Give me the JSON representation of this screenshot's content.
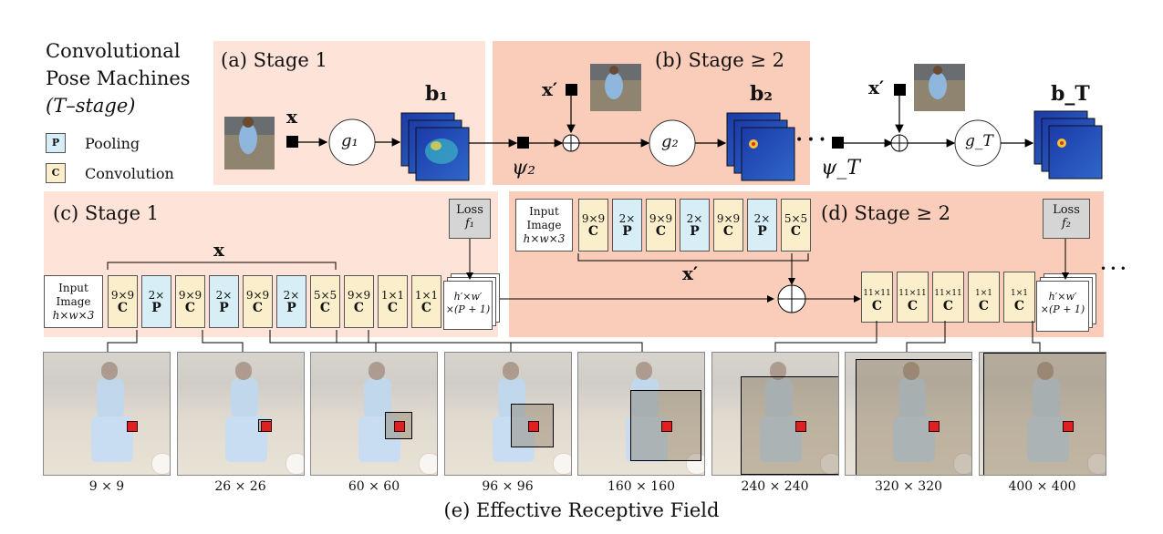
{
  "legend": {
    "title_lines": [
      "Convolutional",
      "Pose Machines",
      "(T–stage)"
    ],
    "pool": {
      "glyph": "P",
      "label": "Pooling",
      "color": "#d7eef7"
    },
    "conv": {
      "glyph": "C",
      "label": "Convolution",
      "color": "#fbeecb"
    }
  },
  "colors": {
    "stage1_panel": "#fde3d8",
    "stage2_panel": "#f9cdb9"
  },
  "panel_a": {
    "title": "(a) Stage 1",
    "x": "x",
    "g": "g₁",
    "b": "b₁"
  },
  "panel_b": {
    "title": "(b) Stage ≥ 2",
    "xprime": "x′",
    "g": "g₂",
    "b": "b₂",
    "psi": "ψ₂"
  },
  "panel_t": {
    "xprime": "x′",
    "g": "g_T",
    "b": "b_T",
    "psi": "ψ_T",
    "dots": "• • •"
  },
  "panel_c": {
    "title": "(c) Stage 1",
    "x": "x",
    "input": [
      "Input",
      "Image",
      "h×w×3"
    ],
    "loss": [
      "Loss",
      "f₁"
    ],
    "layers": [
      {
        "size": "9×9",
        "type": "C"
      },
      {
        "size": "2×",
        "type": "P"
      },
      {
        "size": "9×9",
        "type": "C"
      },
      {
        "size": "2×",
        "type": "P"
      },
      {
        "size": "9×9",
        "type": "C"
      },
      {
        "size": "2×",
        "type": "P"
      },
      {
        "size": "5×5",
        "type": "C"
      },
      {
        "size": "9×9",
        "type": "C"
      },
      {
        "size": "1×1",
        "type": "C"
      },
      {
        "size": "1×1",
        "type": "C"
      }
    ],
    "output": [
      "h′×w′",
      "×(P + 1)"
    ]
  },
  "panel_d": {
    "title": "(d) Stage ≥ 2",
    "xprime": "x′",
    "input": [
      "Input",
      "Image",
      "h×w×3"
    ],
    "loss": [
      "Loss",
      "f₂"
    ],
    "feature_layers": [
      {
        "size": "9×9",
        "type": "C"
      },
      {
        "size": "2×",
        "type": "P"
      },
      {
        "size": "9×9",
        "type": "C"
      },
      {
        "size": "2×",
        "type": "P"
      },
      {
        "size": "9×9",
        "type": "C"
      },
      {
        "size": "2×",
        "type": "P"
      },
      {
        "size": "5×5",
        "type": "C"
      }
    ],
    "stage_layers": [
      {
        "size": "11×11",
        "type": "C"
      },
      {
        "size": "11×11",
        "type": "C"
      },
      {
        "size": "11×11",
        "type": "C"
      },
      {
        "size": "1×1",
        "type": "C"
      },
      {
        "size": "1×1",
        "type": "C"
      }
    ],
    "output": [
      "h′×w′",
      "×(P + 1)"
    ],
    "dots": "• • •"
  },
  "panel_e": {
    "title": "(e) Effective Receptive Field",
    "fields": [
      "9 × 9",
      "26 × 26",
      "60 × 60",
      "96 × 96",
      "160 × 160",
      "240 × 240",
      "320 × 320",
      "400 × 400"
    ]
  }
}
